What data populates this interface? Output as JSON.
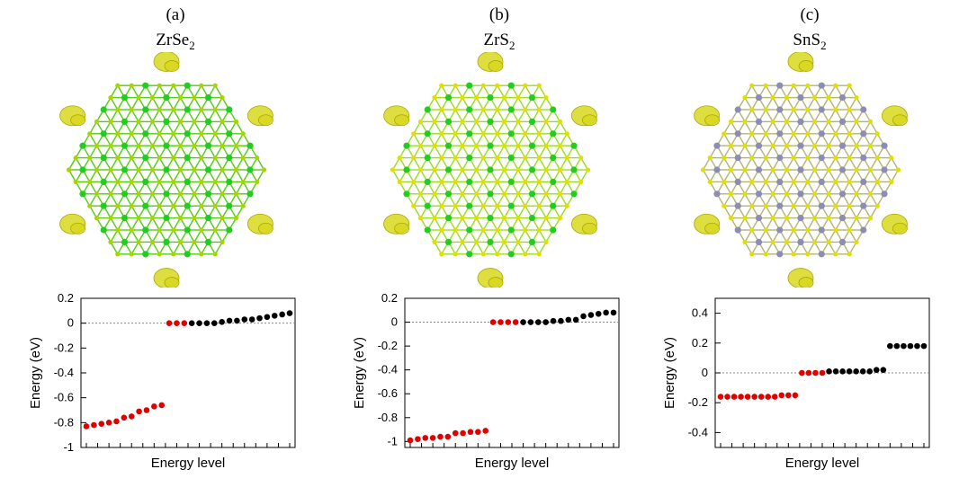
{
  "panels": [
    {
      "tag": "(a)",
      "material_base": "ZrSe",
      "material_sub": "2",
      "colors": {
        "metal": "#22cc22",
        "chalcogen": "#a8d400",
        "bond": "#55cc11",
        "isosurface": "#d8d820"
      }
    },
    {
      "tag": "(b)",
      "material_base": "ZrS",
      "material_sub": "2",
      "colors": {
        "metal": "#22cc22",
        "chalcogen": "#e0e000",
        "bond": "#99dd22",
        "isosurface": "#d8d820"
      }
    },
    {
      "tag": "(c)",
      "material_base": "SnS",
      "material_sub": "2",
      "colors": {
        "metal": "#8c8cb4",
        "chalcogen": "#e0e000",
        "bond": "#b4b478",
        "isosurface": "#d8d820"
      }
    }
  ],
  "chart_data": [
    {
      "type": "scatter",
      "xlabel": "Energy level",
      "ylabel": "Energy (eV)",
      "ylim": [
        -1.0,
        0.2
      ],
      "yticks": [
        0.2,
        0,
        -0.2,
        -0.4,
        -0.6,
        -0.8,
        -1
      ],
      "zero_line": true,
      "red_values": [
        -0.83,
        -0.82,
        -0.81,
        -0.8,
        -0.79,
        -0.76,
        -0.75,
        -0.71,
        -0.7,
        -0.67,
        -0.66,
        0.0,
        0.0,
        0.0
      ],
      "black_values": [
        0.0,
        0.0,
        0.0,
        0.0,
        0.01,
        0.02,
        0.02,
        0.03,
        0.03,
        0.04,
        0.05,
        0.06,
        0.07,
        0.08
      ],
      "colors": {
        "red": "#e00000",
        "black": "#000000",
        "zero_line": "#888888"
      }
    },
    {
      "type": "scatter",
      "xlabel": "Energy level",
      "ylabel": "Energy (eV)",
      "ylim": [
        -1.05,
        0.2
      ],
      "yticks": [
        0.2,
        0,
        -0.2,
        -0.4,
        -0.6,
        -0.8,
        -1
      ],
      "zero_line": true,
      "red_values": [
        -0.99,
        -0.98,
        -0.97,
        -0.97,
        -0.96,
        -0.96,
        -0.93,
        -0.93,
        -0.92,
        -0.92,
        -0.91,
        0.0,
        0.0,
        0.0,
        0.0
      ],
      "black_values": [
        0.0,
        0.0,
        0.0,
        0.0,
        0.01,
        0.01,
        0.02,
        0.02,
        0.05,
        0.06,
        0.07,
        0.08,
        0.08
      ],
      "colors": {
        "red": "#e00000",
        "black": "#000000",
        "zero_line": "#888888"
      }
    },
    {
      "type": "scatter",
      "xlabel": "Energy level",
      "ylabel": "Energy (eV)",
      "ylim": [
        -0.5,
        0.5
      ],
      "yticks": [
        0.4,
        0.2,
        0,
        -0.2,
        -0.4
      ],
      "zero_line": true,
      "red_values": [
        -0.16,
        -0.16,
        -0.16,
        -0.16,
        -0.16,
        -0.16,
        -0.16,
        -0.16,
        -0.16,
        -0.15,
        -0.15,
        -0.15,
        0.0,
        0.0,
        0.0,
        0.0
      ],
      "black_values": [
        0.01,
        0.01,
        0.01,
        0.01,
        0.01,
        0.01,
        0.01,
        0.02,
        0.02,
        0.18,
        0.18,
        0.18,
        0.18,
        0.18,
        0.18
      ],
      "colors": {
        "red": "#e00000",
        "black": "#000000",
        "zero_line": "#888888"
      }
    }
  ]
}
